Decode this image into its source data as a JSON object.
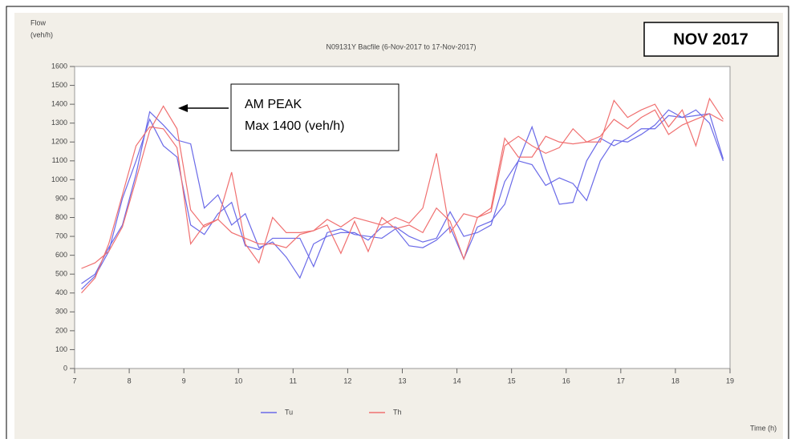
{
  "chart_data": {
    "type": "line",
    "title": "N09131Y Bacfile (6-Nov-2017 to 17-Nov-2017)",
    "y_label_line1": "Flow",
    "y_label_line2": "(veh/h)",
    "x_label": "Time (h)",
    "badge": "NOV 2017",
    "annotation": {
      "line1": "AM PEAK",
      "line2": "Max 1400 (veh/h)",
      "x": 8.625,
      "y": 1400
    },
    "x": [
      7.125,
      7.375,
      7.625,
      7.875,
      8.125,
      8.375,
      8.625,
      8.875,
      9.125,
      9.375,
      9.625,
      9.875,
      10.125,
      10.375,
      10.625,
      10.875,
      11.125,
      11.375,
      11.625,
      11.875,
      12.125,
      12.375,
      12.625,
      12.875,
      13.125,
      13.375,
      13.625,
      13.875,
      14.125,
      14.375,
      14.625,
      14.875,
      15.125,
      15.375,
      15.625,
      15.875,
      16.125,
      16.375,
      16.625,
      16.875,
      17.125,
      17.375,
      17.625,
      17.875,
      18.125,
      18.375,
      18.625,
      18.875
    ],
    "series": [
      {
        "name": "Tu",
        "color": "#6a6ae8",
        "values": [
          [
            450,
            500,
            640,
            760,
            1030,
            1360,
            1290,
            1210,
            1190,
            850,
            920,
            760,
            820,
            640,
            670,
            590,
            480,
            660,
            700,
            720,
            720,
            680,
            750,
            750,
            700,
            670,
            690,
            830,
            700,
            720,
            760,
            990,
            1100,
            1280,
            1060,
            870,
            880,
            1100,
            1220,
            1180,
            1220,
            1270,
            1270,
            1340,
            1330,
            1370,
            1300,
            1100
          ],
          [
            420,
            490,
            620,
            900,
            1100,
            1320,
            1180,
            1120,
            760,
            710,
            820,
            880,
            650,
            630,
            690,
            690,
            690,
            540,
            720,
            740,
            710,
            700,
            690,
            740,
            650,
            640,
            680,
            750,
            580,
            750,
            780,
            870,
            1100,
            1080,
            970,
            1010,
            980,
            890,
            1100,
            1210,
            1200,
            1240,
            1290,
            1370,
            1330,
            1340,
            1350,
            1110
          ]
        ]
      },
      {
        "name": "Th",
        "color": "#f07070",
        "values": [
          [
            530,
            560,
            620,
            750,
            1000,
            1260,
            1390,
            1270,
            840,
            750,
            790,
            1040,
            660,
            560,
            800,
            720,
            720,
            730,
            790,
            750,
            800,
            780,
            760,
            800,
            770,
            850,
            1140,
            720,
            820,
            800,
            850,
            1220,
            1120,
            1120,
            1230,
            1200,
            1190,
            1200,
            1200,
            1420,
            1330,
            1370,
            1400,
            1280,
            1370,
            1180,
            1430,
            1320
          ],
          [
            400,
            480,
            660,
            920,
            1180,
            1280,
            1270,
            1170,
            660,
            760,
            790,
            720,
            690,
            660,
            660,
            640,
            710,
            730,
            760,
            610,
            780,
            620,
            800,
            740,
            760,
            720,
            850,
            780,
            580,
            800,
            830,
            1180,
            1230,
            1180,
            1140,
            1170,
            1270,
            1200,
            1230,
            1320,
            1270,
            1330,
            1370,
            1240,
            1290,
            1320,
            1350,
            1310
          ]
        ]
      }
    ],
    "xlim": [
      7,
      19
    ],
    "xticks": [
      7,
      8,
      9,
      10,
      11,
      12,
      13,
      14,
      15,
      16,
      17,
      18,
      19
    ],
    "ylim": [
      0,
      1600
    ],
    "yticks": [
      0,
      100,
      200,
      300,
      400,
      500,
      600,
      700,
      800,
      900,
      1000,
      1100,
      1200,
      1300,
      1400,
      1500,
      1600
    ]
  }
}
